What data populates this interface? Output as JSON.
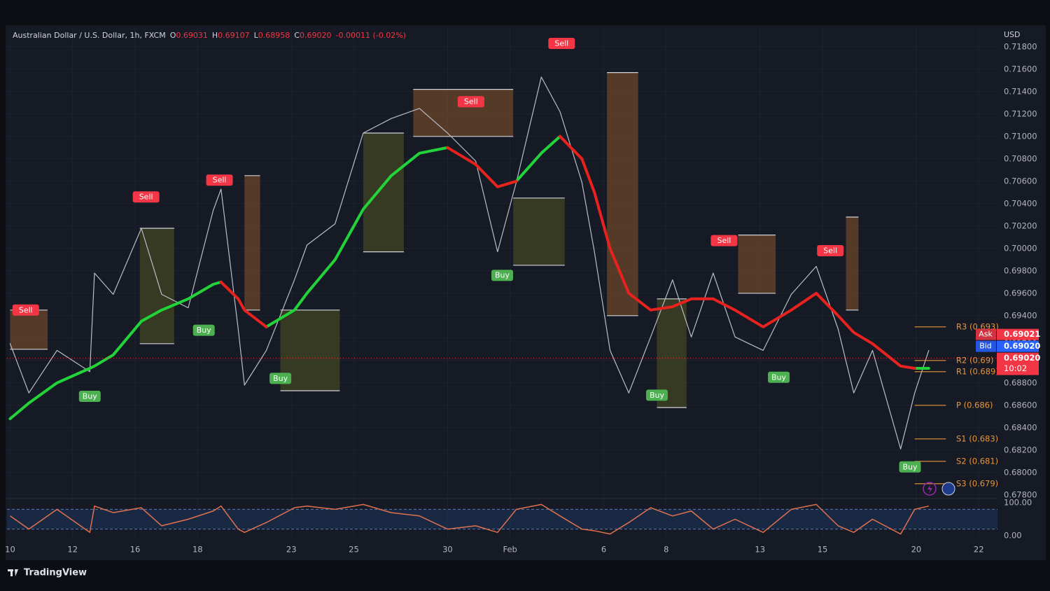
{
  "header": {
    "parts": [
      {
        "text": "Australian Dollar / U.S. Dollar, 1h, FXCM",
        "color": "#d1d4dc"
      },
      {
        "text": "O",
        "color": "#d1d4dc"
      },
      {
        "text": "0.69031",
        "color": "#f23645"
      },
      {
        "text": "H",
        "color": "#d1d4dc"
      },
      {
        "text": "0.69107",
        "color": "#f23645"
      },
      {
        "text": "L",
        "color": "#d1d4dc"
      },
      {
        "text": "0.68958",
        "color": "#f23645"
      },
      {
        "text": "C",
        "color": "#d1d4dc"
      },
      {
        "text": "0.69020",
        "color": "#f23645"
      },
      {
        "text": "-0.00011 (-0.02%)",
        "color": "#f23645"
      }
    ]
  },
  "branding": "TradingView",
  "chart_data": {
    "type": "line",
    "currency": "USD",
    "grid": true,
    "xlim": [
      -0.1,
      31.6
    ],
    "xticks": [
      {
        "value": 0,
        "label": "10"
      },
      {
        "value": 2,
        "label": "12"
      },
      {
        "value": 4,
        "label": "16"
      },
      {
        "value": 6,
        "label": "18"
      },
      {
        "value": 9,
        "label": "23"
      },
      {
        "value": 11,
        "label": "25"
      },
      {
        "value": 14,
        "label": "30"
      },
      {
        "value": 16,
        "label": "Feb"
      },
      {
        "value": 19,
        "label": "6"
      },
      {
        "value": 21,
        "label": "8"
      },
      {
        "value": 24,
        "label": "13"
      },
      {
        "value": 26,
        "label": "15"
      },
      {
        "value": 29,
        "label": "20"
      },
      {
        "value": 31,
        "label": "22"
      }
    ],
    "ylim": [
      0.6778,
      0.7198
    ],
    "yticks": [
      {
        "value": 0.718,
        "label": "0.71800"
      },
      {
        "value": 0.716,
        "label": "0.71600"
      },
      {
        "value": 0.714,
        "label": "0.71400"
      },
      {
        "value": 0.712,
        "label": "0.71200"
      },
      {
        "value": 0.71,
        "label": "0.71000"
      },
      {
        "value": 0.708,
        "label": "0.70800"
      },
      {
        "value": 0.706,
        "label": "0.70600"
      },
      {
        "value": 0.704,
        "label": "0.70400"
      },
      {
        "value": 0.702,
        "label": "0.70200"
      },
      {
        "value": 0.7,
        "label": "0.70000"
      },
      {
        "value": 0.698,
        "label": "0.69800"
      },
      {
        "value": 0.696,
        "label": "0.69600"
      },
      {
        "value": 0.694,
        "label": "0.69400"
      },
      {
        "value": 0.692,
        "label": "0.69200"
      },
      {
        "value": 0.69,
        "label": "0.69000"
      },
      {
        "value": 0.688,
        "label": "0.68800"
      },
      {
        "value": 0.686,
        "label": "0.68600"
      },
      {
        "value": 0.684,
        "label": "0.68400"
      },
      {
        "value": 0.682,
        "label": "0.68200"
      },
      {
        "value": 0.68,
        "label": "0.68000"
      },
      {
        "value": 0.678,
        "label": "0.67800"
      }
    ],
    "x": [
      0,
      0.6,
      1.5,
      2.55,
      2.7,
      3.3,
      4.2,
      4.85,
      5.7,
      6.5,
      6.75,
      7.3,
      7.5,
      8.2,
      9.1,
      9.5,
      10.4,
      11.3,
      12.2,
      13.1,
      14.0,
      14.9,
      15.6,
      16.2,
      17.0,
      17.6,
      18.3,
      18.7,
      19.2,
      19.8,
      20.5,
      21.2,
      21.8,
      22.5,
      23.2,
      24.1,
      25.0,
      25.8,
      26.5,
      27.0,
      27.6,
      28.5,
      28.95,
      29.4
    ],
    "series": [
      {
        "color": "#b9bdc7",
        "width": 1.2,
        "values": [
          0.6915,
          0.6871,
          0.6909,
          0.689,
          0.6978,
          0.6959,
          0.7018,
          0.6959,
          0.6947,
          0.7034,
          0.7053,
          0.6928,
          0.6878,
          0.6909,
          0.6972,
          0.7003,
          0.7022,
          0.7103,
          0.7116,
          0.7125,
          0.7103,
          0.7078,
          0.6997,
          0.7059,
          0.7153,
          0.7122,
          0.7059,
          0.6997,
          0.6909,
          0.6871,
          0.6921,
          0.6972,
          0.6921,
          0.6978,
          0.6921,
          0.6909,
          0.6959,
          0.6984,
          0.6928,
          0.6871,
          0.6909,
          0.6821,
          0.6871,
          0.6909
        ]
      },
      {
        "color": "#22d33a",
        "width": 4,
        "values": [
          0.6848,
          0.6862,
          0.688,
          0.6893,
          0.6895,
          0.6905,
          0.6935,
          0.6945,
          0.6955,
          0.6968,
          0.697,
          null,
          null,
          0.693,
          0.6945,
          0.696,
          0.699,
          0.7035,
          0.7065,
          0.7085,
          0.709,
          null,
          null,
          0.706,
          0.7085,
          0.71,
          null,
          null,
          null,
          null,
          null,
          null,
          null,
          null,
          null,
          null,
          null,
          null,
          null,
          null,
          null,
          null,
          0.6893,
          0.6893
        ]
      },
      {
        "color": "#e8221e",
        "width": 4,
        "values": [
          null,
          null,
          null,
          null,
          null,
          null,
          null,
          null,
          null,
          null,
          0.697,
          0.6955,
          0.6945,
          0.693,
          null,
          null,
          null,
          null,
          null,
          null,
          0.709,
          0.7075,
          0.7055,
          0.706,
          null,
          0.71,
          0.708,
          0.705,
          0.7,
          0.696,
          0.6945,
          0.6948,
          0.6955,
          0.6955,
          0.6945,
          0.693,
          0.6945,
          0.696,
          0.694,
          0.6925,
          0.6915,
          0.6895,
          0.6893,
          null
        ]
      }
    ],
    "zones": [
      {
        "x0": 0.0,
        "x1": 1.2,
        "top": 0.6945,
        "bottom": 0.691,
        "color": "#a0622a"
      },
      {
        "x0": 4.15,
        "x1": 5.25,
        "top": 0.7018,
        "bottom": 0.6915,
        "color": "#5d6120"
      },
      {
        "x0": 7.5,
        "x1": 8.0,
        "top": 0.7065,
        "bottom": 0.6945,
        "color": "#a0622a"
      },
      {
        "x0": 8.65,
        "x1": 10.55,
        "top": 0.6945,
        "bottom": 0.6873,
        "color": "#5d6120"
      },
      {
        "x0": 11.3,
        "x1": 12.6,
        "top": 0.7103,
        "bottom": 0.6997,
        "color": "#5d6120"
      },
      {
        "x0": 12.9,
        "x1": 16.1,
        "top": 0.7142,
        "bottom": 0.71,
        "color": "#a0622a"
      },
      {
        "x0": 16.1,
        "x1": 17.75,
        "top": 0.7045,
        "bottom": 0.6985,
        "color": "#5d6120"
      },
      {
        "x0": 19.1,
        "x1": 20.1,
        "top": 0.7157,
        "bottom": 0.694,
        "color": "#a0622a"
      },
      {
        "x0": 20.7,
        "x1": 21.65,
        "top": 0.6955,
        "bottom": 0.6858,
        "color": "#5d6120"
      },
      {
        "x0": 23.3,
        "x1": 24.5,
        "top": 0.7012,
        "bottom": 0.696,
        "color": "#a0622a"
      },
      {
        "x0": 26.75,
        "x1": 27.15,
        "top": 0.7028,
        "bottom": 0.6945,
        "color": "#a0622a"
      }
    ],
    "signals": [
      {
        "label": "Sell",
        "x": 0.5,
        "y": 0.6945,
        "color": "#f23645"
      },
      {
        "label": "Buy",
        "x": 2.55,
        "y": 0.6868,
        "color": "#4caf50"
      },
      {
        "label": "Sell",
        "x": 4.35,
        "y": 0.7046,
        "color": "#f23645"
      },
      {
        "label": "Buy",
        "x": 6.2,
        "y": 0.6927,
        "color": "#4caf50"
      },
      {
        "label": "Sell",
        "x": 6.7,
        "y": 0.7061,
        "color": "#f23645"
      },
      {
        "label": "Buy",
        "x": 8.65,
        "y": 0.6884,
        "color": "#4caf50"
      },
      {
        "label": "Sell",
        "x": 14.75,
        "y": 0.7131,
        "color": "#f23645"
      },
      {
        "label": "Buy",
        "x": 15.75,
        "y": 0.6976,
        "color": "#4caf50"
      },
      {
        "label": "Sell",
        "x": 17.65,
        "y": 0.7183,
        "color": "#f23645"
      },
      {
        "label": "Buy",
        "x": 20.7,
        "y": 0.6869,
        "color": "#4caf50"
      },
      {
        "label": "Sell",
        "x": 22.85,
        "y": 0.7007,
        "color": "#f23645"
      },
      {
        "label": "Buy",
        "x": 24.6,
        "y": 0.6885,
        "color": "#4caf50"
      },
      {
        "label": "Sell",
        "x": 26.25,
        "y": 0.6998,
        "color": "#f23645"
      },
      {
        "label": "Buy",
        "x": 28.8,
        "y": 0.6805,
        "color": "#4caf50"
      }
    ],
    "pivots_x": [
      28.95,
      29.95
    ],
    "pivot_color": "#e8963a",
    "pivots": [
      {
        "label": "R3 (0.693)",
        "value": 0.693
      },
      {
        "label": "R2 (0.69)",
        "value": 0.69
      },
      {
        "label": "R1 (0.689)",
        "value": 0.689
      },
      {
        "label": "P (0.686)",
        "value": 0.686
      },
      {
        "label": "S1 (0.683)",
        "value": 0.683
      },
      {
        "label": "S2 (0.681)",
        "value": 0.681
      },
      {
        "label": "S3 (0.679)",
        "value": 0.679
      }
    ],
    "price_tags": [
      {
        "label": "Ask",
        "value": 0.69021,
        "value_label": "0.69021",
        "color": "#f23645"
      },
      {
        "label": "Bid",
        "value": 0.6902,
        "value_label": "0.69020",
        "color": "#2962ff"
      }
    ],
    "last": {
      "value": 0.6902,
      "value_label": "0.69020",
      "time": "10:02",
      "color": "#f23645"
    },
    "oscillator": {
      "ylim": [
        0,
        100
      ],
      "yticks": [
        {
          "value": 100,
          "label": "100.00"
        },
        {
          "value": 0,
          "label": "0.00"
        }
      ],
      "band": [
        20,
        80
      ],
      "color": "#e0714f",
      "values": [
        60,
        20,
        80,
        10,
        90,
        70,
        85,
        30,
        50,
        75,
        90,
        20,
        10,
        40,
        85,
        90,
        80,
        95,
        70,
        60,
        20,
        30,
        10,
        80,
        95,
        60,
        20,
        15,
        5,
        40,
        85,
        60,
        75,
        20,
        50,
        10,
        80,
        95,
        30,
        10,
        50,
        5,
        80,
        90
      ]
    }
  }
}
